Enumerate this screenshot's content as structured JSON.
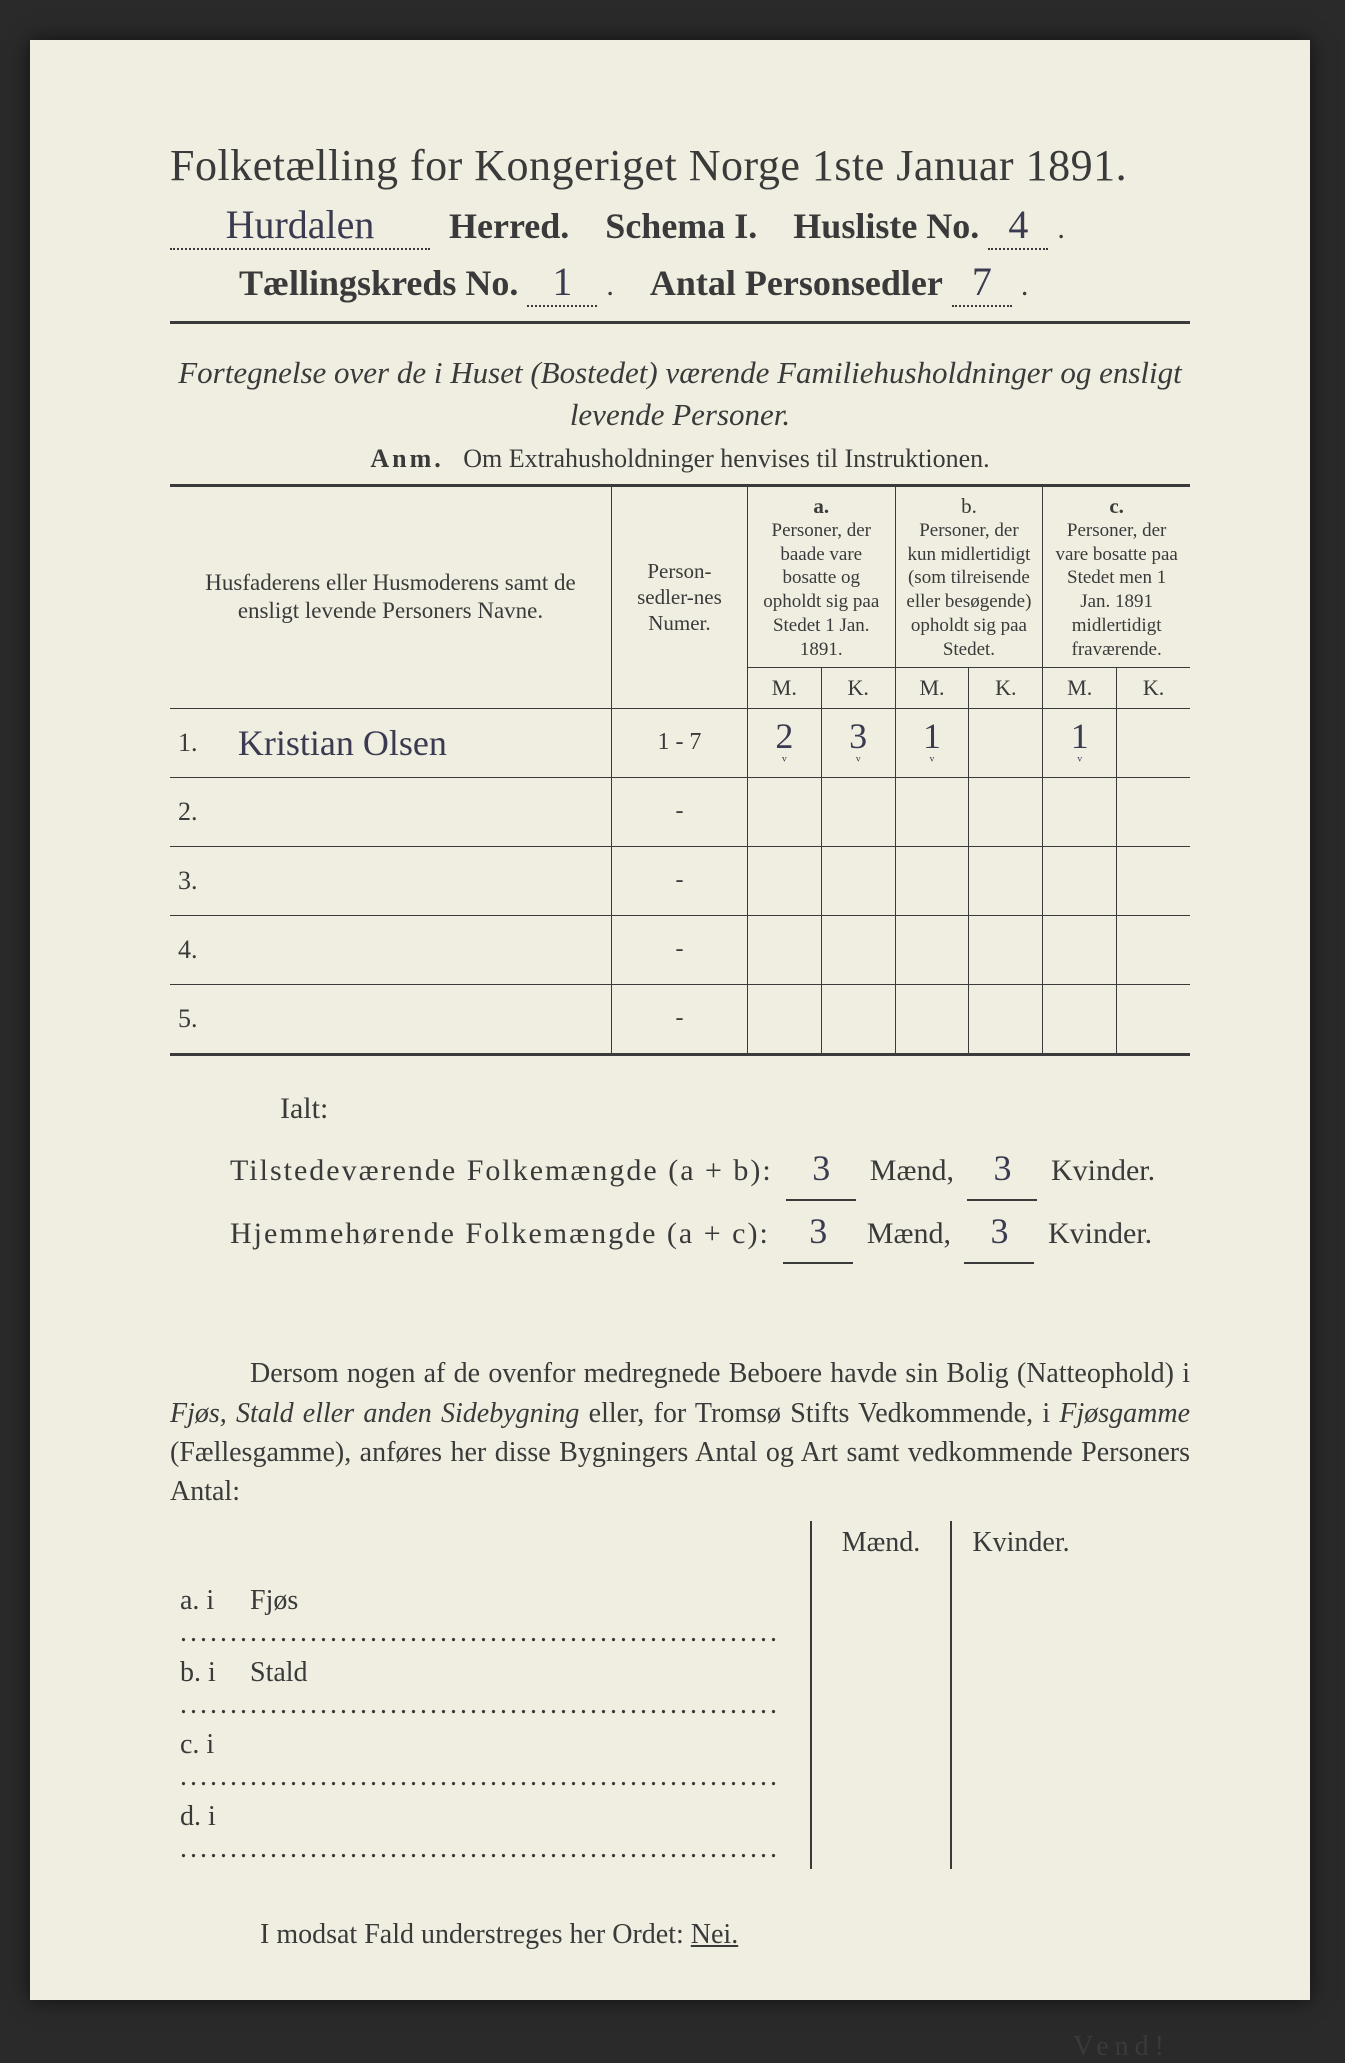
{
  "page": {
    "bg": "#f0eee0",
    "ink": "#3a3a3a",
    "script_ink": "#3a3a50"
  },
  "header": {
    "title": "Folketælling for Kongeriget Norge 1ste Januar 1891.",
    "herred_value": "Hurdalen",
    "herred_label": "Herred.",
    "schema_label": "Schema I.",
    "husliste_label": "Husliste No.",
    "husliste_value": "4",
    "kreds_label": "Tællingskreds No.",
    "kreds_value": "1",
    "antal_label": "Antal Personsedler",
    "antal_value": "7"
  },
  "instruction": {
    "line": "Fortegnelse over de i Huset (Bostedet) værende Familiehusholdninger og ensligt levende Personer.",
    "anm_label": "Anm.",
    "anm_text": "Om Extrahusholdninger henvises til Instruktionen."
  },
  "table": {
    "col_name": "Husfaderens eller Husmoderens samt de ensligt levende Personers Navne.",
    "col_numer": "Person-sedler-nes Numer.",
    "col_a_label": "a.",
    "col_a_text": "Personer, der baade vare bosatte og opholdt sig paa Stedet 1 Jan. 1891.",
    "col_b_label": "b.",
    "col_b_text": "Personer, der kun midlertidigt (som tilreisende eller besøgende) opholdt sig paa Stedet.",
    "col_c_label": "c.",
    "col_c_text": "Personer, der vare bosatte paa Stedet men 1 Jan. 1891 midlertidigt fraværende.",
    "m": "M.",
    "k": "K.",
    "rows": [
      {
        "n": "1.",
        "name": "Kristian Olsen",
        "numer": "1 - 7",
        "a_m": "2",
        "a_k": "3",
        "b_m": "1",
        "b_k": "",
        "c_m": "1",
        "c_k": ""
      },
      {
        "n": "2.",
        "name": "",
        "numer": "-",
        "a_m": "",
        "a_k": "",
        "b_m": "",
        "b_k": "",
        "c_m": "",
        "c_k": ""
      },
      {
        "n": "3.",
        "name": "",
        "numer": "-",
        "a_m": "",
        "a_k": "",
        "b_m": "",
        "b_k": "",
        "c_m": "",
        "c_k": ""
      },
      {
        "n": "4.",
        "name": "",
        "numer": "-",
        "a_m": "",
        "a_k": "",
        "b_m": "",
        "b_k": "",
        "c_m": "",
        "c_k": ""
      },
      {
        "n": "5.",
        "name": "",
        "numer": "-",
        "a_m": "",
        "a_k": "",
        "b_m": "",
        "b_k": "",
        "c_m": "",
        "c_k": ""
      }
    ]
  },
  "totals": {
    "ialt": "Ialt:",
    "line1_label": "Tilstedeværende Folkemængde (a + b):",
    "line2_label": "Hjemmehørende Folkemængde (a + c):",
    "maend": "Mænd,",
    "kvinder": "Kvinder.",
    "l1_m": "3",
    "l1_k": "3",
    "l2_m": "3",
    "l2_k": "3"
  },
  "para": {
    "text1": "Dersom nogen af de ovenfor medregnede Beboere havde sin Bolig (Natteophold) i ",
    "em1": "Fjøs, Stald eller anden Sidebygning",
    "text2": " eller, for Tromsø Stifts Vedkommende, i ",
    "em2": "Fjøsgamme",
    "text3": " (Fællesgamme), anføres her disse Bygningers Antal og Art samt vedkommende Personers Antal:"
  },
  "bottom": {
    "maend": "Mænd.",
    "kvinder": "Kvinder.",
    "rows": [
      {
        "label": "a.  i",
        "item": "Fjøs"
      },
      {
        "label": "b.  i",
        "item": "Stald"
      },
      {
        "label": "c.  i",
        "item": ""
      },
      {
        "label": "d.  i",
        "item": ""
      }
    ]
  },
  "footer": {
    "modsat_pre": "I modsat Fald understreges her Ordet: ",
    "nei": "Nei.",
    "vend": "Vend!"
  }
}
